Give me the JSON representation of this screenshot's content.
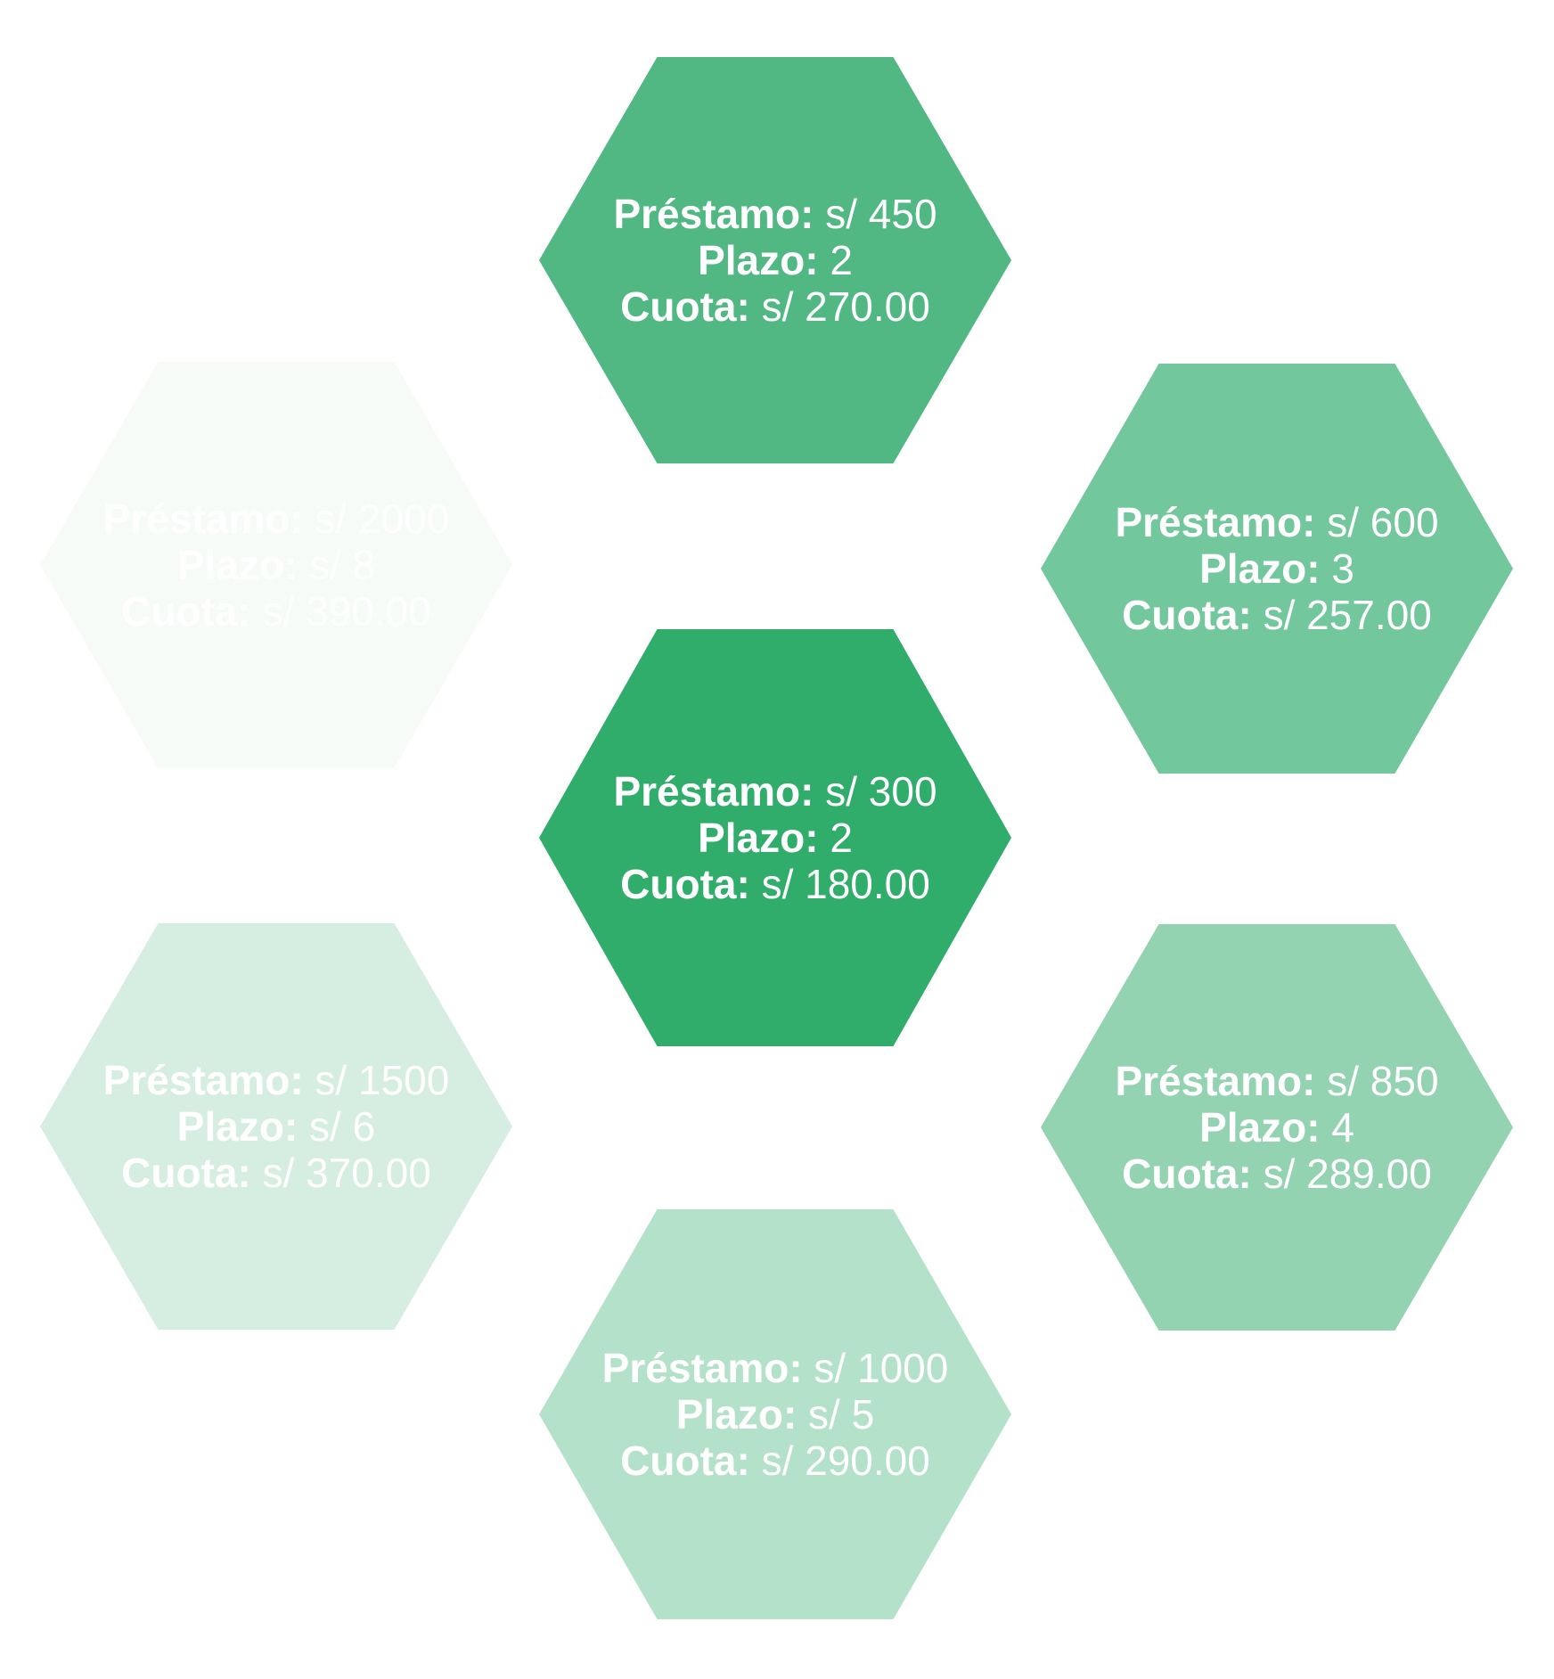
{
  "hexagons": [
    {
      "id": "top",
      "color": "#51b884",
      "lines": [
        {
          "label": "Préstamo:",
          "value": "s/ 450"
        },
        {
          "label": "Plazo:",
          "value": "2"
        },
        {
          "label": "Cuota:",
          "value": "s/ 270.00"
        }
      ]
    },
    {
      "id": "upper-right",
      "color": "#73c79c",
      "lines": [
        {
          "label": "Préstamo:",
          "value": "s/ 600"
        },
        {
          "label": "Plazo:",
          "value": "3"
        },
        {
          "label": "Cuota:",
          "value": "s/ 257.00"
        }
      ]
    },
    {
      "id": "center",
      "color": "#30ad6b",
      "lines": [
        {
          "label": "Préstamo:",
          "value": "s/ 300"
        },
        {
          "label": "Plazo:",
          "value": "2"
        },
        {
          "label": "Cuota:",
          "value": "s/ 180.00"
        }
      ]
    },
    {
      "id": "upper-left",
      "color": "#f6fbf8",
      "lines": [
        {
          "label": "Préstamo:",
          "value": "s/ 2000"
        },
        {
          "label": "Plazo:",
          "value": "s/ 8"
        },
        {
          "label": "Cuota:",
          "value": "s/ 390.00"
        }
      ]
    },
    {
      "id": "lower-left",
      "color": "#d6eee1",
      "lines": [
        {
          "label": "Préstamo:",
          "value": "s/ 1500"
        },
        {
          "label": "Plazo:",
          "value": "s/ 6"
        },
        {
          "label": "Cuota:",
          "value": "s/ 370.00"
        }
      ]
    },
    {
      "id": "lower-right",
      "color": "#94d3b2",
      "lines": [
        {
          "label": "Préstamo:",
          "value": "s/ 850"
        },
        {
          "label": "Plazo:",
          "value": "4"
        },
        {
          "label": "Cuota:",
          "value": "s/ 289.00"
        }
      ]
    },
    {
      "id": "bottom",
      "color": "#b4e1ca",
      "lines": [
        {
          "label": "Préstamo:",
          "value": "s/ 1000"
        },
        {
          "label": "Plazo:",
          "value": "s/ 5"
        },
        {
          "label": "Cuota:",
          "value": "s/ 290.00"
        }
      ]
    }
  ]
}
